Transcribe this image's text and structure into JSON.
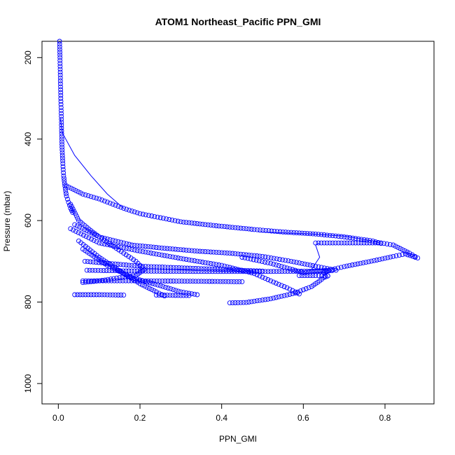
{
  "chart_data": {
    "type": "scatter",
    "title": "ATOM1 Northeast_Pacific PPN_GMI",
    "xlabel": "PPN_GMI",
    "ylabel": "Pressure (mbar)",
    "xlim": [
      -0.04,
      0.92
    ],
    "ylim": [
      1050,
      160
    ],
    "y_reversed": true,
    "grid": false,
    "legend": "none",
    "marker": "open-circle",
    "color": "#0000ff",
    "x_ticks": [
      0.0,
      0.2,
      0.4,
      0.6,
      0.8
    ],
    "x_tick_labels": [
      "0.0",
      "0.2",
      "0.4",
      "0.6",
      "0.8"
    ],
    "y_ticks": [
      200,
      400,
      600,
      800,
      1000
    ],
    "y_tick_labels": [
      "200",
      "400",
      "600",
      "800",
      "1000"
    ],
    "series": [
      {
        "mode": "points",
        "points": [
          [
            0.003,
            160
          ],
          [
            0.004,
            200
          ],
          [
            0.005,
            250
          ],
          [
            0.006,
            300
          ],
          [
            0.007,
            330
          ],
          [
            0.008,
            380
          ],
          [
            0.009,
            420
          ],
          [
            0.011,
            460
          ],
          [
            0.013,
            490
          ],
          [
            0.016,
            515
          ],
          [
            0.02,
            540
          ],
          [
            0.025,
            555
          ],
          [
            0.03,
            570
          ],
          [
            0.035,
            580
          ]
        ]
      },
      {
        "mode": "points",
        "points": [
          [
            0.02,
            515
          ],
          [
            0.06,
            535
          ],
          [
            0.1,
            547
          ],
          [
            0.16,
            570
          ],
          [
            0.2,
            583
          ],
          [
            0.25,
            593
          ],
          [
            0.3,
            603
          ],
          [
            0.38,
            612
          ],
          [
            0.48,
            622
          ],
          [
            0.55,
            628
          ],
          [
            0.63,
            633
          ],
          [
            0.7,
            640
          ],
          [
            0.77,
            650
          ],
          [
            0.79,
            656
          ]
        ]
      },
      {
        "mode": "points",
        "points": [
          [
            0.03,
            560
          ],
          [
            0.05,
            600
          ],
          [
            0.08,
            625
          ],
          [
            0.1,
            640
          ],
          [
            0.13,
            660
          ],
          [
            0.16,
            680
          ],
          [
            0.19,
            700
          ],
          [
            0.21,
            720
          ],
          [
            0.19,
            735
          ],
          [
            0.15,
            740
          ],
          [
            0.1,
            748
          ],
          [
            0.06,
            752
          ]
        ]
      },
      {
        "mode": "points",
        "points": [
          [
            0.04,
            610
          ],
          [
            0.1,
            640
          ],
          [
            0.18,
            660
          ],
          [
            0.26,
            668
          ],
          [
            0.34,
            675
          ],
          [
            0.42,
            680
          ],
          [
            0.5,
            688
          ],
          [
            0.57,
            700
          ],
          [
            0.63,
            712
          ],
          [
            0.68,
            722
          ]
        ]
      },
      {
        "mode": "points",
        "points": [
          [
            0.03,
            620
          ],
          [
            0.1,
            655
          ],
          [
            0.2,
            675
          ],
          [
            0.3,
            693
          ],
          [
            0.4,
            710
          ],
          [
            0.48,
            730
          ],
          [
            0.52,
            748
          ],
          [
            0.56,
            765
          ],
          [
            0.58,
            775
          ],
          [
            0.59,
            780
          ]
        ]
      },
      {
        "mode": "points",
        "points": [
          [
            0.05,
            650
          ],
          [
            0.1,
            690
          ],
          [
            0.16,
            730
          ],
          [
            0.2,
            755
          ],
          [
            0.24,
            775
          ],
          [
            0.26,
            785
          ]
        ]
      },
      {
        "mode": "points",
        "points": [
          [
            0.06,
            670
          ],
          [
            0.12,
            710
          ],
          [
            0.18,
            740
          ],
          [
            0.25,
            760
          ],
          [
            0.3,
            775
          ],
          [
            0.34,
            782
          ]
        ]
      },
      {
        "mode": "points",
        "points": [
          [
            0.065,
            700
          ],
          [
            0.2,
            712
          ],
          [
            0.35,
            718
          ],
          [
            0.45,
            722
          ],
          [
            0.5,
            724
          ]
        ]
      },
      {
        "mode": "points",
        "points": [
          [
            0.07,
            722
          ],
          [
            0.2,
            724
          ],
          [
            0.35,
            725
          ],
          [
            0.5,
            725
          ],
          [
            0.65,
            724
          ],
          [
            0.67,
            723
          ]
        ]
      },
      {
        "mode": "points",
        "points": [
          [
            0.06,
            748
          ],
          [
            0.2,
            748
          ],
          [
            0.35,
            749
          ],
          [
            0.43,
            750
          ],
          [
            0.45,
            750
          ]
        ]
      },
      {
        "mode": "points",
        "points": [
          [
            0.04,
            782
          ],
          [
            0.1,
            782
          ],
          [
            0.16,
            783
          ]
        ]
      },
      {
        "mode": "points",
        "points": [
          [
            0.24,
            783
          ],
          [
            0.26,
            783
          ],
          [
            0.3,
            784
          ],
          [
            0.32,
            784
          ]
        ]
      },
      {
        "mode": "points",
        "points": [
          [
            0.42,
            802
          ],
          [
            0.46,
            801
          ],
          [
            0.52,
            792
          ],
          [
            0.58,
            778
          ],
          [
            0.62,
            762
          ],
          [
            0.64,
            748
          ],
          [
            0.65,
            740
          ],
          [
            0.66,
            736
          ]
        ]
      },
      {
        "mode": "points",
        "points": [
          [
            0.59,
            735
          ],
          [
            0.63,
            735
          ],
          [
            0.66,
            736
          ]
        ]
      },
      {
        "mode": "points",
        "points": [
          [
            0.63,
            655
          ],
          [
            0.7,
            655
          ],
          [
            0.79,
            655
          ],
          [
            0.82,
            660
          ],
          [
            0.86,
            680
          ],
          [
            0.88,
            692
          ],
          [
            0.85,
            682
          ],
          [
            0.82,
            688
          ],
          [
            0.78,
            697
          ],
          [
            0.74,
            705
          ],
          [
            0.7,
            713
          ],
          [
            0.67,
            720
          ],
          [
            0.65,
            728
          ]
        ]
      },
      {
        "mode": "points",
        "points": [
          [
            0.45,
            690
          ],
          [
            0.52,
            705
          ],
          [
            0.58,
            722
          ],
          [
            0.6,
            728
          ],
          [
            0.62,
            725
          ],
          [
            0.66,
            722
          ]
        ]
      },
      {
        "mode": "line",
        "points": [
          [
            0.005,
            350
          ],
          [
            0.01,
            385
          ],
          [
            0.04,
            440
          ],
          [
            0.08,
            490
          ],
          [
            0.12,
            535
          ],
          [
            0.16,
            570
          ]
        ]
      },
      {
        "mode": "line",
        "points": [
          [
            0.49,
            628
          ],
          [
            0.62,
            633
          ],
          [
            0.7,
            638
          ],
          [
            0.77,
            650
          ],
          [
            0.79,
            656
          ]
        ]
      },
      {
        "mode": "line",
        "points": [
          [
            0.62,
            720
          ],
          [
            0.64,
            690
          ],
          [
            0.63,
            660
          ],
          [
            0.64,
            655
          ]
        ]
      }
    ]
  }
}
